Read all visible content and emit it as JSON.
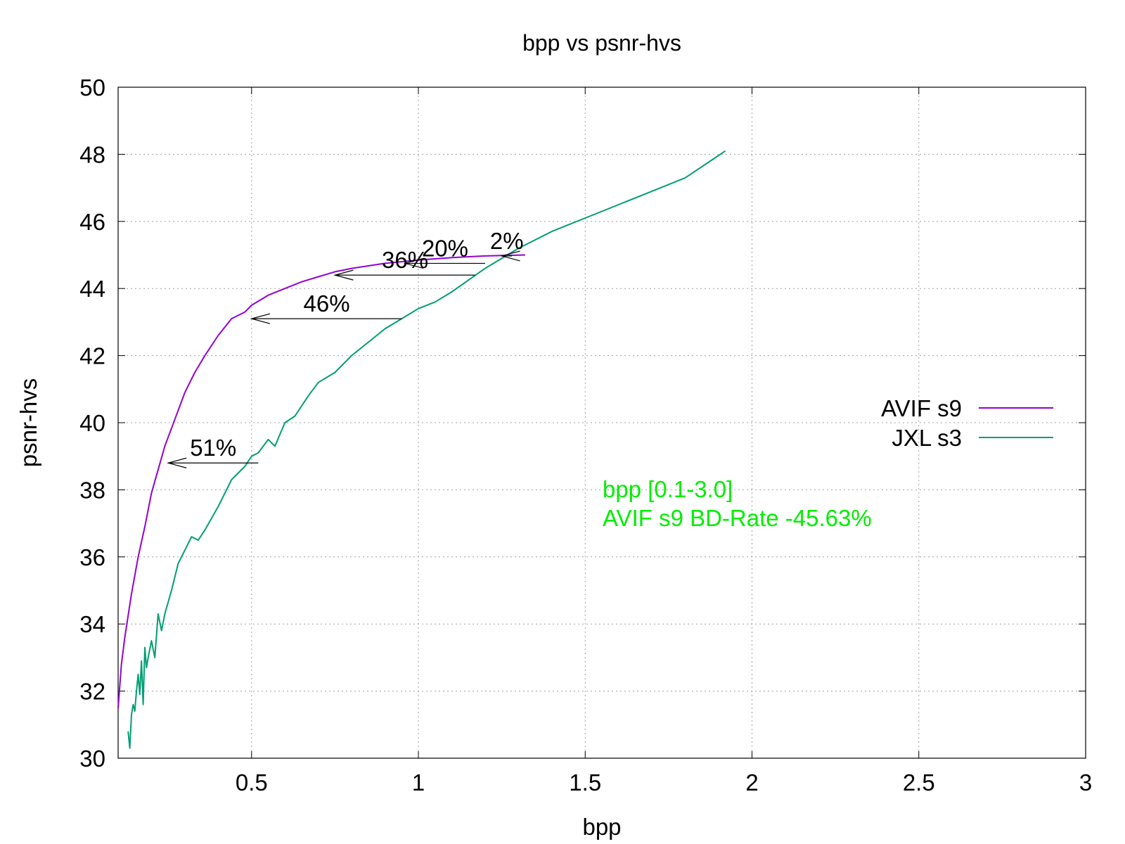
{
  "chart_data": {
    "type": "line",
    "title": "bpp vs psnr-hvs",
    "xlabel": "bpp",
    "ylabel": "psnr-hvs",
    "xlim": [
      0.1,
      3.0
    ],
    "ylim": [
      30,
      50
    ],
    "xticks": [
      0.5,
      1,
      1.5,
      2,
      2.5,
      3
    ],
    "xtick_labels": [
      "0.5",
      "1",
      "1.5",
      "2",
      "2.5",
      "3"
    ],
    "yticks": [
      30,
      32,
      34,
      36,
      38,
      40,
      42,
      44,
      46,
      48,
      50
    ],
    "ytick_labels": [
      "30",
      "32",
      "34",
      "36",
      "38",
      "40",
      "42",
      "44",
      "46",
      "48",
      "50"
    ],
    "grid": true,
    "legend_position": "right",
    "series": [
      {
        "name": "AVIF s9",
        "color": "#9400d3",
        "x": [
          0.1,
          0.11,
          0.12,
          0.14,
          0.16,
          0.18,
          0.2,
          0.22,
          0.24,
          0.27,
          0.3,
          0.33,
          0.36,
          0.4,
          0.44,
          0.48,
          0.5,
          0.55,
          0.6,
          0.65,
          0.7,
          0.75,
          0.8,
          0.9,
          1.0,
          1.1,
          1.2,
          1.32
        ],
        "y": [
          31.5,
          32.8,
          33.6,
          34.9,
          36.0,
          36.9,
          37.9,
          38.6,
          39.3,
          40.1,
          40.9,
          41.5,
          42.0,
          42.6,
          43.1,
          43.3,
          43.5,
          43.8,
          44.0,
          44.2,
          44.35,
          44.5,
          44.6,
          44.75,
          44.85,
          44.92,
          44.97,
          45.0
        ]
      },
      {
        "name": "JXL s3",
        "color": "#009e73",
        "x": [
          0.13,
          0.135,
          0.14,
          0.145,
          0.15,
          0.155,
          0.16,
          0.165,
          0.17,
          0.175,
          0.18,
          0.185,
          0.19,
          0.2,
          0.21,
          0.22,
          0.23,
          0.24,
          0.26,
          0.28,
          0.3,
          0.32,
          0.34,
          0.36,
          0.4,
          0.44,
          0.48,
          0.5,
          0.52,
          0.55,
          0.57,
          0.6,
          0.63,
          0.67,
          0.7,
          0.75,
          0.8,
          0.85,
          0.9,
          0.95,
          1.0,
          1.05,
          1.1,
          1.2,
          1.3,
          1.4,
          1.5,
          1.6,
          1.7,
          1.8,
          1.92
        ],
        "y": [
          30.8,
          30.3,
          31.3,
          31.6,
          31.4,
          32.0,
          32.5,
          31.9,
          32.9,
          31.6,
          33.3,
          32.7,
          33.0,
          33.5,
          33.0,
          34.3,
          33.8,
          34.3,
          35.0,
          35.8,
          36.2,
          36.6,
          36.5,
          36.8,
          37.5,
          38.3,
          38.7,
          39.0,
          39.1,
          39.5,
          39.3,
          40.0,
          40.2,
          40.8,
          41.2,
          41.5,
          42.0,
          42.4,
          42.8,
          43.1,
          43.4,
          43.6,
          43.9,
          44.6,
          45.2,
          45.7,
          46.1,
          46.5,
          46.9,
          47.3,
          48.1
        ]
      }
    ],
    "annotations": [
      {
        "label": "51%",
        "y": 38.8,
        "x_from": 0.52,
        "x_to": 0.25
      },
      {
        "label": "46%",
        "y": 43.1,
        "x_from": 0.95,
        "x_to": 0.5
      },
      {
        "label": "36%",
        "y": 44.4,
        "x_from": 1.17,
        "x_to": 0.75
      },
      {
        "label": "20%",
        "y": 44.75,
        "x_from": 1.2,
        "x_to": 0.96
      },
      {
        "label": "2%",
        "y": 44.97,
        "x_from": 1.28,
        "x_to": 1.25
      }
    ],
    "note": {
      "lines": [
        "bpp [0.1-3.0]",
        "AVIF s9 BD-Rate -45.63%"
      ],
      "color": "#00ee00"
    }
  }
}
